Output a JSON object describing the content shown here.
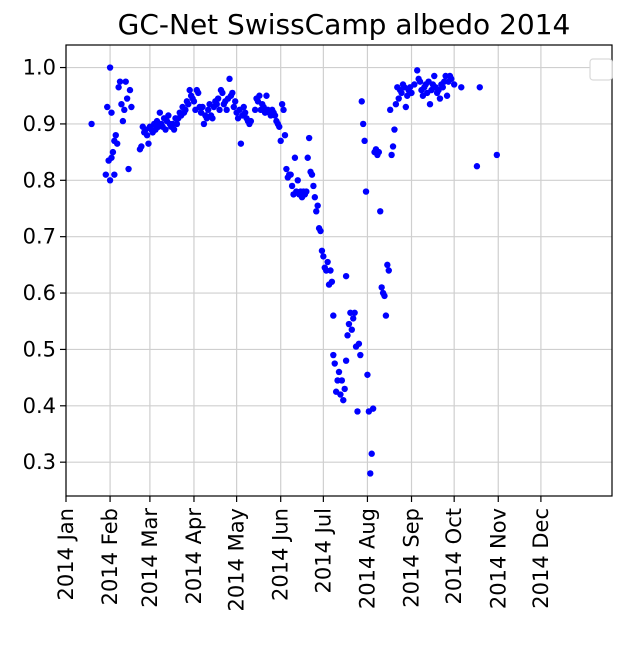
{
  "chart_data": {
    "type": "scatter",
    "title": "GC-Net SwissCamp albedo 2014",
    "xlabel": "",
    "ylabel": "",
    "x_ticks": [
      "2014 Jan",
      "2014 Feb",
      "2014 Mar",
      "2014 Apr",
      "2014 May",
      "2014 Jun",
      "2014 Jul",
      "2014 Aug",
      "2014 Sep",
      "2014 Oct",
      "2014 Nov",
      "2014 Dec"
    ],
    "y_ticks": [
      "0.3",
      "0.4",
      "0.5",
      "0.6",
      "0.7",
      "0.8",
      "0.9",
      "1.0"
    ],
    "xlim": [
      "2014-01-01",
      "2015-01-20"
    ],
    "ylim": [
      0.24,
      1.04
    ],
    "grid": true,
    "legend": "top-right",
    "marker_color": "#0000ff",
    "points": [
      [
        "2014-01-19",
        0.9
      ],
      [
        "2014-01-29",
        0.81
      ],
      [
        "2014-01-30",
        0.93
      ],
      [
        "2014-01-31",
        0.835
      ],
      [
        "2014-02-01",
        0.8
      ],
      [
        "2014-02-01",
        1.0
      ],
      [
        "2014-02-02",
        0.84
      ],
      [
        "2014-02-02",
        0.92
      ],
      [
        "2014-02-03",
        0.85
      ],
      [
        "2014-02-04",
        0.81
      ],
      [
        "2014-02-04",
        0.87
      ],
      [
        "2014-02-05",
        0.88
      ],
      [
        "2014-02-06",
        0.865
      ],
      [
        "2014-02-07",
        0.965
      ],
      [
        "2014-02-08",
        0.975
      ],
      [
        "2014-02-09",
        0.935
      ],
      [
        "2014-02-10",
        0.905
      ],
      [
        "2014-02-11",
        0.925
      ],
      [
        "2014-02-12",
        0.975
      ],
      [
        "2014-02-13",
        0.945
      ],
      [
        "2014-02-14",
        0.82
      ],
      [
        "2014-02-15",
        0.96
      ],
      [
        "2014-02-16",
        0.93
      ],
      [
        "2014-02-22",
        0.855
      ],
      [
        "2014-02-23",
        0.86
      ],
      [
        "2014-02-24",
        0.895
      ],
      [
        "2014-02-25",
        0.885
      ],
      [
        "2014-02-26",
        0.89
      ],
      [
        "2014-02-27",
        0.88
      ],
      [
        "2014-02-28",
        0.865
      ],
      [
        "2014-03-01",
        0.895
      ],
      [
        "2014-03-02",
        0.89
      ],
      [
        "2014-03-03",
        0.885
      ],
      [
        "2014-03-04",
        0.9
      ],
      [
        "2014-03-05",
        0.89
      ],
      [
        "2014-03-06",
        0.905
      ],
      [
        "2014-03-07",
        0.895
      ],
      [
        "2014-03-08",
        0.92
      ],
      [
        "2014-03-09",
        0.9
      ],
      [
        "2014-03-10",
        0.895
      ],
      [
        "2014-03-11",
        0.91
      ],
      [
        "2014-03-12",
        0.89
      ],
      [
        "2014-03-13",
        0.905
      ],
      [
        "2014-03-14",
        0.915
      ],
      [
        "2014-03-15",
        0.9
      ],
      [
        "2014-03-16",
        0.895
      ],
      [
        "2014-03-17",
        0.9
      ],
      [
        "2014-03-18",
        0.89
      ],
      [
        "2014-03-19",
        0.91
      ],
      [
        "2014-03-20",
        0.9
      ],
      [
        "2014-03-21",
        0.91
      ],
      [
        "2014-03-22",
        0.92
      ],
      [
        "2014-03-23",
        0.915
      ],
      [
        "2014-03-24",
        0.93
      ],
      [
        "2014-03-25",
        0.92
      ],
      [
        "2014-03-26",
        0.925
      ],
      [
        "2014-03-27",
        0.94
      ],
      [
        "2014-03-28",
        0.935
      ],
      [
        "2014-03-29",
        0.96
      ],
      [
        "2014-03-30",
        0.95
      ],
      [
        "2014-03-31",
        0.945
      ],
      [
        "2014-04-01",
        0.94
      ],
      [
        "2014-04-02",
        0.925
      ],
      [
        "2014-04-03",
        0.96
      ],
      [
        "2014-04-04",
        0.955
      ],
      [
        "2014-04-05",
        0.93
      ],
      [
        "2014-04-06",
        0.92
      ],
      [
        "2014-04-07",
        0.93
      ],
      [
        "2014-04-08",
        0.9
      ],
      [
        "2014-04-09",
        0.915
      ],
      [
        "2014-04-10",
        0.91
      ],
      [
        "2014-04-11",
        0.925
      ],
      [
        "2014-04-12",
        0.935
      ],
      [
        "2014-04-13",
        0.915
      ],
      [
        "2014-04-14",
        0.91
      ],
      [
        "2014-04-15",
        0.93
      ],
      [
        "2014-04-16",
        0.94
      ],
      [
        "2014-04-17",
        0.935
      ],
      [
        "2014-04-18",
        0.945
      ],
      [
        "2014-04-19",
        0.925
      ],
      [
        "2014-04-20",
        0.96
      ],
      [
        "2014-04-21",
        0.955
      ],
      [
        "2014-04-22",
        0.935
      ],
      [
        "2014-04-23",
        0.94
      ],
      [
        "2014-04-24",
        0.925
      ],
      [
        "2014-04-25",
        0.945
      ],
      [
        "2014-04-26",
        0.98
      ],
      [
        "2014-04-27",
        0.95
      ],
      [
        "2014-04-28",
        0.955
      ],
      [
        "2014-04-29",
        0.93
      ],
      [
        "2014-04-30",
        0.94
      ],
      [
        "2014-05-01",
        0.92
      ],
      [
        "2014-05-02",
        0.91
      ],
      [
        "2014-05-03",
        0.925
      ],
      [
        "2014-05-04",
        0.865
      ],
      [
        "2014-05-05",
        0.915
      ],
      [
        "2014-05-06",
        0.93
      ],
      [
        "2014-05-07",
        0.92
      ],
      [
        "2014-05-08",
        0.91
      ],
      [
        "2014-05-09",
        0.905
      ],
      [
        "2014-05-10",
        0.9
      ],
      [
        "2014-05-11",
        0.905
      ],
      [
        "2014-05-14",
        0.925
      ],
      [
        "2014-05-15",
        0.945
      ],
      [
        "2014-05-16",
        0.94
      ],
      [
        "2014-05-17",
        0.95
      ],
      [
        "2014-05-18",
        0.925
      ],
      [
        "2014-05-19",
        0.935
      ],
      [
        "2014-05-20",
        0.93
      ],
      [
        "2014-05-21",
        0.92
      ],
      [
        "2014-05-22",
        0.95
      ],
      [
        "2014-05-23",
        0.925
      ],
      [
        "2014-05-24",
        0.92
      ],
      [
        "2014-05-25",
        0.915
      ],
      [
        "2014-05-26",
        0.925
      ],
      [
        "2014-05-27",
        0.92
      ],
      [
        "2014-05-28",
        0.915
      ],
      [
        "2014-05-29",
        0.905
      ],
      [
        "2014-05-30",
        0.9
      ],
      [
        "2014-05-31",
        0.895
      ],
      [
        "2014-06-01",
        0.87
      ],
      [
        "2014-06-02",
        0.935
      ],
      [
        "2014-06-03",
        0.925
      ],
      [
        "2014-06-04",
        0.88
      ],
      [
        "2014-06-05",
        0.82
      ],
      [
        "2014-06-06",
        0.805
      ],
      [
        "2014-06-07",
        0.81
      ],
      [
        "2014-06-08",
        0.81
      ],
      [
        "2014-06-09",
        0.79
      ],
      [
        "2014-06-10",
        0.775
      ],
      [
        "2014-06-11",
        0.84
      ],
      [
        "2014-06-12",
        0.78
      ],
      [
        "2014-06-13",
        0.8
      ],
      [
        "2014-06-14",
        0.775
      ],
      [
        "2014-06-15",
        0.78
      ],
      [
        "2014-06-16",
        0.77
      ],
      [
        "2014-06-17",
        0.78
      ],
      [
        "2014-06-18",
        0.775
      ],
      [
        "2014-06-19",
        0.78
      ],
      [
        "2014-06-20",
        0.84
      ],
      [
        "2014-06-21",
        0.875
      ],
      [
        "2014-06-22",
        0.815
      ],
      [
        "2014-06-23",
        0.81
      ],
      [
        "2014-06-24",
        0.79
      ],
      [
        "2014-06-25",
        0.77
      ],
      [
        "2014-06-26",
        0.745
      ],
      [
        "2014-06-27",
        0.755
      ],
      [
        "2014-06-28",
        0.715
      ],
      [
        "2014-06-29",
        0.71
      ],
      [
        "2014-06-30",
        0.675
      ],
      [
        "2014-07-01",
        0.665
      ],
      [
        "2014-07-02",
        0.645
      ],
      [
        "2014-07-03",
        0.64
      ],
      [
        "2014-07-04",
        0.655
      ],
      [
        "2014-07-05",
        0.615
      ],
      [
        "2014-07-06",
        0.64
      ],
      [
        "2014-07-07",
        0.62
      ],
      [
        "2014-07-08",
        0.56
      ],
      [
        "2014-07-08",
        0.49
      ],
      [
        "2014-07-09",
        0.475
      ],
      [
        "2014-07-10",
        0.425
      ],
      [
        "2014-07-11",
        0.445
      ],
      [
        "2014-07-12",
        0.46
      ],
      [
        "2014-07-13",
        0.42
      ],
      [
        "2014-07-14",
        0.445
      ],
      [
        "2014-07-15",
        0.41
      ],
      [
        "2014-07-16",
        0.43
      ],
      [
        "2014-07-17",
        0.48
      ],
      [
        "2014-07-17",
        0.63
      ],
      [
        "2014-07-18",
        0.525
      ],
      [
        "2014-07-19",
        0.545
      ],
      [
        "2014-07-20",
        0.565
      ],
      [
        "2014-07-21",
        0.535
      ],
      [
        "2014-07-22",
        0.555
      ],
      [
        "2014-07-23",
        0.565
      ],
      [
        "2014-07-24",
        0.505
      ],
      [
        "2014-07-25",
        0.39
      ],
      [
        "2014-07-26",
        0.51
      ],
      [
        "2014-07-27",
        0.49
      ],
      [
        "2014-07-28",
        0.94
      ],
      [
        "2014-07-29",
        0.9
      ],
      [
        "2014-07-30",
        0.87
      ],
      [
        "2014-07-31",
        0.78
      ],
      [
        "2014-08-01",
        0.455
      ],
      [
        "2014-08-02",
        0.39
      ],
      [
        "2014-08-03",
        0.28
      ],
      [
        "2014-08-04",
        0.315
      ],
      [
        "2014-08-05",
        0.395
      ],
      [
        "2014-08-06",
        0.85
      ],
      [
        "2014-08-07",
        0.855
      ],
      [
        "2014-08-08",
        0.845
      ],
      [
        "2014-08-09",
        0.85
      ],
      [
        "2014-08-10",
        0.745
      ],
      [
        "2014-08-11",
        0.61
      ],
      [
        "2014-08-12",
        0.6
      ],
      [
        "2014-08-13",
        0.595
      ],
      [
        "2014-08-14",
        0.56
      ],
      [
        "2014-08-15",
        0.65
      ],
      [
        "2014-08-16",
        0.64
      ],
      [
        "2014-08-17",
        0.925
      ],
      [
        "2014-08-18",
        0.845
      ],
      [
        "2014-08-19",
        0.86
      ],
      [
        "2014-08-20",
        0.89
      ],
      [
        "2014-08-21",
        0.935
      ],
      [
        "2014-08-22",
        0.965
      ],
      [
        "2014-08-23",
        0.945
      ],
      [
        "2014-08-24",
        0.96
      ],
      [
        "2014-08-25",
        0.955
      ],
      [
        "2014-08-26",
        0.97
      ],
      [
        "2014-08-27",
        0.965
      ],
      [
        "2014-08-28",
        0.93
      ],
      [
        "2014-08-29",
        0.95
      ],
      [
        "2014-08-30",
        0.96
      ],
      [
        "2014-08-31",
        0.965
      ],
      [
        "2014-09-01",
        0.955
      ],
      [
        "2014-09-03",
        0.97
      ],
      [
        "2014-09-05",
        0.995
      ],
      [
        "2014-09-06",
        0.98
      ],
      [
        "2014-09-07",
        0.975
      ],
      [
        "2014-09-08",
        0.96
      ],
      [
        "2014-09-09",
        0.95
      ],
      [
        "2014-09-10",
        0.965
      ],
      [
        "2014-09-11",
        0.97
      ],
      [
        "2014-09-12",
        0.955
      ],
      [
        "2014-09-13",
        0.975
      ],
      [
        "2014-09-14",
        0.935
      ],
      [
        "2014-09-15",
        0.96
      ],
      [
        "2014-09-16",
        0.97
      ],
      [
        "2014-09-17",
        0.985
      ],
      [
        "2014-09-18",
        0.965
      ],
      [
        "2014-09-19",
        0.955
      ],
      [
        "2014-09-20",
        0.96
      ],
      [
        "2014-09-21",
        0.945
      ],
      [
        "2014-09-22",
        0.97
      ],
      [
        "2014-09-23",
        0.965
      ],
      [
        "2014-09-24",
        0.975
      ],
      [
        "2014-09-25",
        0.985
      ],
      [
        "2014-09-26",
        0.95
      ],
      [
        "2014-09-27",
        0.975
      ],
      [
        "2014-09-28",
        0.985
      ],
      [
        "2014-09-29",
        0.98
      ],
      [
        "2014-10-01",
        0.97
      ],
      [
        "2014-10-06",
        0.965
      ],
      [
        "2014-10-17",
        0.825
      ],
      [
        "2014-10-19",
        0.965
      ],
      [
        "2014-10-31",
        0.845
      ]
    ]
  }
}
